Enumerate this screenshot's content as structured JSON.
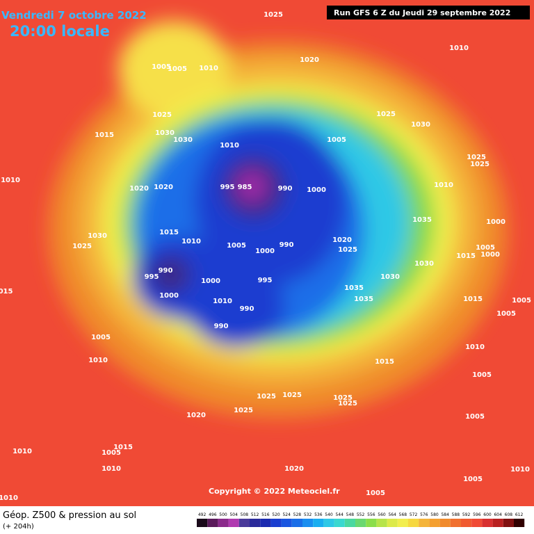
{
  "header": {
    "date": "Vendredi 7 octobre 2022",
    "time": "20:00 locale",
    "run": "Run GFS 6 Z du Jeudi 29 septembre 2022"
  },
  "isobar_labels": [
    1025,
    1010,
    1005,
    1005,
    1010,
    1020,
    1025,
    1025,
    1030,
    1015,
    1030,
    1030,
    1005,
    1010,
    1025,
    1025,
    1010,
    995,
    985,
    990,
    1000,
    1010,
    1020,
    1020,
    1035,
    1000,
    1015,
    1030,
    1010,
    1005,
    1020,
    990,
    1025,
    1025,
    1000,
    1005,
    1015,
    1000,
    990,
    995,
    1030,
    1030,
    995,
    1000,
    1035,
    1035,
    1015,
    1005,
    1000,
    1010,
    "015",
    990,
    1005,
    990,
    1005,
    1010,
    1010,
    1015,
    1005,
    1025,
    1025,
    1025,
    1025,
    1025,
    1020,
    1005,
    1015,
    1005,
    1010,
    1010,
    1020,
    1010,
    1005,
    1005,
    1010
  ],
  "copyright": "Copyright © 2022 Meteociel.fr",
  "footer": {
    "title": "Géop. Z500 & pression au sol",
    "lead": "(+ 204h)"
  },
  "scale_ticks": [
    492,
    496,
    500,
    504,
    508,
    512,
    516,
    520,
    524,
    528,
    532,
    536,
    540,
    544,
    548,
    552,
    556,
    560,
    564,
    568,
    572,
    576,
    580,
    584,
    588,
    592,
    596,
    600,
    604,
    608,
    612
  ]
}
